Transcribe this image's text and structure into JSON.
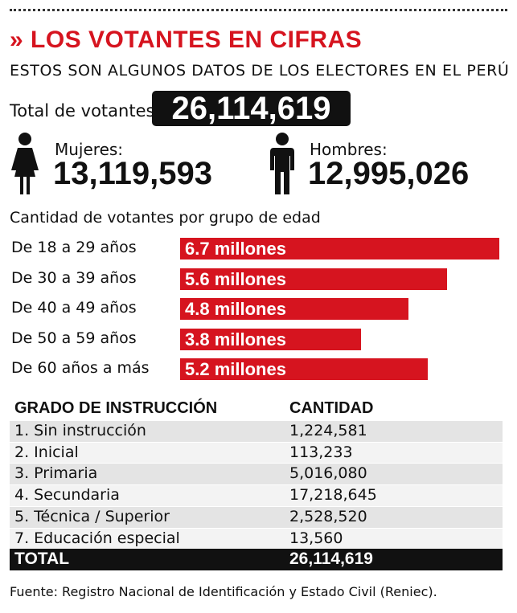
{
  "header": {
    "title": "» LOS VOTANTES EN CIFRAS",
    "subtitle": "ESTOS SON ALGUNOS DATOS DE LOS ELECTORES EN EL PERÚ"
  },
  "totals": {
    "label": "Total de votantes",
    "value": "26,114,619",
    "women_label": "Mujeres:",
    "women": "13,119,593",
    "men_label": "Hombres:",
    "men": "12,995,026"
  },
  "chart_data": {
    "type": "bar",
    "orientation": "horizontal",
    "title": "Cantidad de votantes por grupo de edad",
    "categories": [
      "De 18 a 29 años",
      "De 30 a 39 años",
      "De 40 a 49 años",
      "De 50 a 59 años",
      "De 60 años a más"
    ],
    "values": [
      6.7,
      5.6,
      4.8,
      3.8,
      5.2
    ],
    "value_labels": [
      "6.7 millones",
      "5.6 millones",
      "4.8 millones",
      "3.8 millones",
      "5.2 millones"
    ],
    "color": "#d6141f"
  },
  "table": {
    "header": [
      "GRADO DE INSTRUCCIÓN",
      "CANTIDAD"
    ],
    "rows": [
      [
        "1. Sin instrucción",
        "1,224,581"
      ],
      [
        "2. Inicial",
        "113,233"
      ],
      [
        "3. Primaria",
        "5,016,080"
      ],
      [
        "4. Secundaria",
        "17,218,645"
      ],
      [
        "5. Técnica / Superior",
        "2,528,520"
      ],
      [
        "7. Educación especial",
        "13,560"
      ]
    ],
    "total": [
      "TOTAL",
      "26,114,619"
    ]
  },
  "source": "Fuente: Registro Nacional de Identificación y Estado Civil (Reniec)."
}
